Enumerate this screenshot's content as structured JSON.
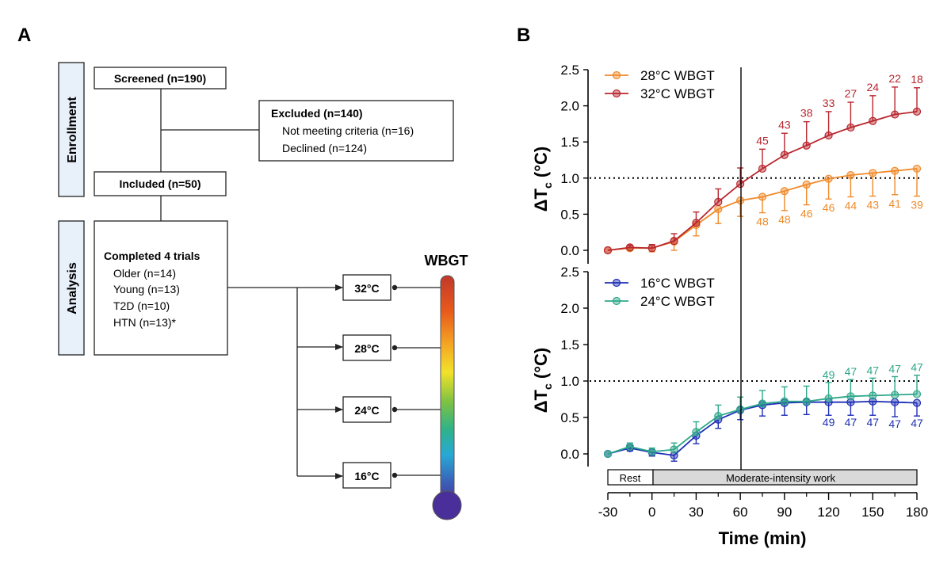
{
  "panel_a": {
    "label": "A",
    "side_labels": {
      "enrollment": "Enrollment",
      "analysis": "Analysis"
    },
    "screened": "Screened (n=190)",
    "excluded": {
      "title": "Excluded (n=140)",
      "lines": [
        "Not meeting criteria (n=16)",
        "Declined (n=124)"
      ]
    },
    "included": "Included (n=50)",
    "completed": {
      "title": "Completed 4 trials",
      "lines": [
        "Older (n=14)",
        "Young (n=13)",
        "T2D (n=10)",
        "HTN (n=13)*"
      ]
    },
    "conditions": [
      "32°C",
      "28°C",
      "24°C",
      "16°C"
    ],
    "wbgt_label": "WBGT",
    "colors": {
      "box_fill_side": "#e8f0fa",
      "thermo_gradient": [
        "#c0392b",
        "#e8581c",
        "#f5a623",
        "#f2e22a",
        "#7cc242",
        "#2fb28a",
        "#27a9d6",
        "#3a5fb8",
        "#4a2f9a"
      ],
      "bulb": "#4a2f9a"
    }
  },
  "panel_b": {
    "label": "B",
    "chart_data": [
      {
        "type": "line",
        "ylabel": "ΔTc (°C)",
        "ylim": [
          -0.1,
          2.5
        ],
        "yticks": [
          "0.0",
          "0.5",
          "1.0",
          "1.5",
          "2.0",
          "2.5"
        ],
        "reference_hline": 1.0,
        "legend": [
          "28°C  WBGT",
          "32°C  WBGT"
        ],
        "x": [
          -30,
          -15,
          0,
          15,
          30,
          45,
          60,
          75,
          90,
          105,
          120,
          135,
          150,
          165,
          180
        ],
        "series": [
          {
            "name": "28°C  WBGT",
            "color": "#f08a2a",
            "values": [
              0.0,
              0.03,
              0.03,
              0.12,
              0.35,
              0.57,
              0.69,
              0.74,
              0.82,
              0.91,
              0.99,
              1.04,
              1.07,
              1.1,
              1.13
            ],
            "err": [
              0.0,
              0.03,
              0.05,
              0.12,
              0.15,
              0.2,
              0.22,
              0.22,
              0.27,
              0.28,
              0.28,
              0.3,
              0.32,
              0.33,
              0.38
            ],
            "err_dir": "down",
            "n_labels": [
              "",
              "",
              "",
              "",
              "",
              "",
              "",
              "48",
              "48",
              "46",
              "46",
              "44",
              "43",
              "41",
              "39"
            ]
          },
          {
            "name": "32°C  WBGT",
            "color": "#b8262e",
            "values": [
              0.0,
              0.04,
              0.03,
              0.13,
              0.38,
              0.67,
              0.92,
              1.13,
              1.32,
              1.45,
              1.59,
              1.7,
              1.79,
              1.88,
              1.92
            ],
            "err": [
              0.0,
              0.03,
              0.05,
              0.1,
              0.15,
              0.18,
              0.22,
              0.27,
              0.3,
              0.33,
              0.33,
              0.35,
              0.35,
              0.38,
              0.33
            ],
            "err_dir": "up",
            "n_labels": [
              "",
              "",
              "",
              "",
              "",
              "",
              "",
              "45",
              "43",
              "38",
              "33",
              "27",
              "24",
              "22",
              "18"
            ]
          }
        ]
      },
      {
        "type": "line",
        "ylabel": "ΔTc (°C)",
        "xlabel": "Time (min)",
        "ylim": [
          -0.1,
          2.5
        ],
        "yticks": [
          "0.0",
          "0.5",
          "1.0",
          "1.5",
          "2.0",
          "2.5"
        ],
        "xticks": [
          "-30",
          "0",
          "30",
          "60",
          "90",
          "120",
          "150",
          "180"
        ],
        "reference_hline": 1.0,
        "reference_vline": 60,
        "legend": [
          "16°C  WBGT",
          "24°C  WBGT"
        ],
        "x": [
          -30,
          -15,
          0,
          15,
          30,
          45,
          60,
          75,
          90,
          105,
          120,
          135,
          150,
          165,
          180
        ],
        "series": [
          {
            "name": "16°C  WBGT",
            "color": "#1f2fb5",
            "values": [
              0.0,
              0.08,
              0.02,
              -0.02,
              0.25,
              0.47,
              0.6,
              0.67,
              0.7,
              0.71,
              0.71,
              0.71,
              0.72,
              0.71,
              0.7
            ],
            "err": [
              0.0,
              0.04,
              0.05,
              0.08,
              0.11,
              0.12,
              0.13,
              0.15,
              0.17,
              0.17,
              0.18,
              0.18,
              0.19,
              0.2,
              0.18
            ],
            "err_dir": "down",
            "n_labels": [
              "",
              "",
              "",
              "",
              "",
              "",
              "",
              "",
              "",
              "",
              "49",
              "47",
              "47",
              "47",
              "47"
            ]
          },
          {
            "name": "24°C  WBGT",
            "color": "#2ea88a",
            "values": [
              0.0,
              0.1,
              0.03,
              0.06,
              0.3,
              0.52,
              0.61,
              0.69,
              0.72,
              0.72,
              0.76,
              0.79,
              0.8,
              0.81,
              0.82
            ],
            "err": [
              0.0,
              0.05,
              0.05,
              0.09,
              0.14,
              0.15,
              0.17,
              0.18,
              0.2,
              0.21,
              0.22,
              0.23,
              0.24,
              0.25,
              0.26
            ],
            "err_dir": "up",
            "n_labels": [
              "",
              "",
              "",
              "",
              "",
              "",
              "",
              "",
              "",
              "",
              "49",
              "47",
              "47",
              "47",
              "47"
            ]
          }
        ]
      }
    ],
    "phase_bar": {
      "rest": "Rest",
      "work": "Moderate-intensity work"
    }
  }
}
